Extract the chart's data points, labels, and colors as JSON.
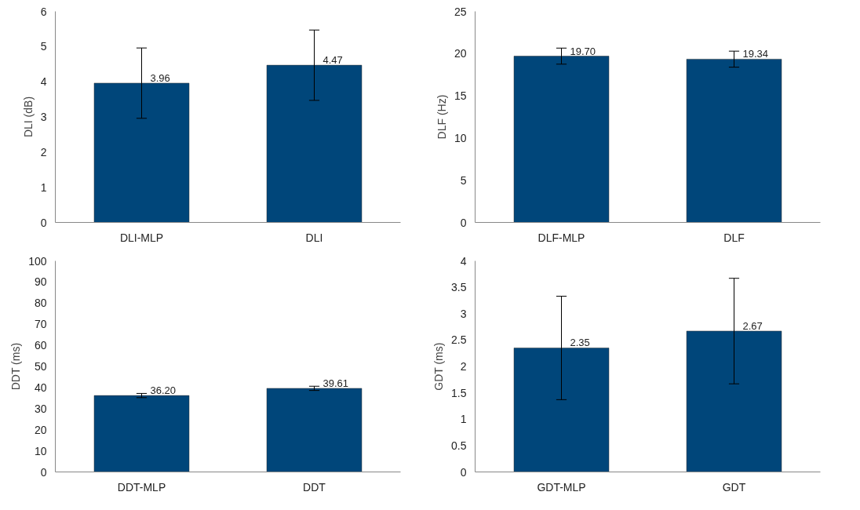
{
  "chart_data": [
    {
      "type": "bar",
      "ylabel": "DLI (dB)",
      "categories": [
        "DLI-MLP",
        "DLI"
      ],
      "values": [
        3.96,
        4.47
      ],
      "errors": [
        1.0,
        1.0
      ],
      "value_labels": [
        "3.96",
        "4.47"
      ],
      "color": "#00467a",
      "ylim": [
        0,
        6
      ],
      "yticks": [
        0,
        1,
        2,
        3,
        4,
        5,
        6
      ],
      "grid": false
    },
    {
      "type": "bar",
      "ylabel": "DLF (Hz)",
      "categories": [
        "DLF-MLP",
        "DLF"
      ],
      "values": [
        19.7,
        19.34
      ],
      "errors": [
        0.95,
        0.95
      ],
      "value_labels": [
        "19.70",
        "19.34"
      ],
      "color": "#00467a",
      "ylim": [
        0,
        25
      ],
      "yticks": [
        0,
        5,
        10,
        15,
        20,
        25
      ],
      "grid": false
    },
    {
      "type": "bar",
      "ylabel": "DDT (ms)",
      "categories": [
        "DDT-MLP",
        "DDT"
      ],
      "values": [
        36.2,
        39.61
      ],
      "errors": [
        1.0,
        1.0
      ],
      "value_labels": [
        "36.20",
        "39.61"
      ],
      "color": "#00467a",
      "ylim": [
        0,
        100
      ],
      "yticks": [
        0,
        10,
        20,
        30,
        40,
        50,
        60,
        70,
        80,
        90,
        100
      ],
      "grid": false
    },
    {
      "type": "bar",
      "ylabel": "GDT (ms)",
      "categories": [
        "GDT-MLP",
        "GDT"
      ],
      "values": [
        2.35,
        2.67
      ],
      "errors": [
        0.98,
        1.0
      ],
      "value_labels": [
        "2.35",
        "2.67"
      ],
      "color": "#00467a",
      "ylim": [
        0,
        4
      ],
      "yticks": [
        0,
        0.5,
        1,
        1.5,
        2,
        2.5,
        3,
        3.5,
        4
      ],
      "grid": false
    }
  ]
}
